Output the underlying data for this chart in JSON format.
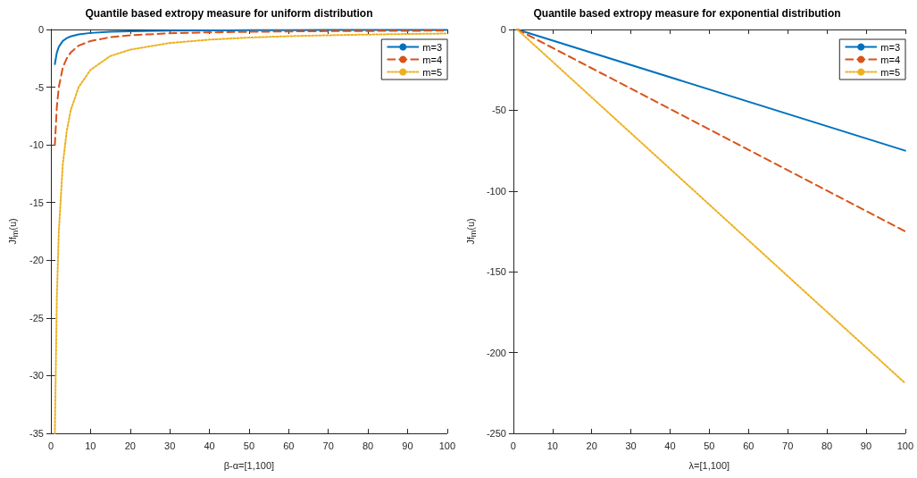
{
  "chart_data": [
    {
      "type": "line",
      "title": "Quantile based extropy measure for uniform distribution",
      "xlabel": "β-α=[1,100]",
      "ylabel": "Jf$_{m}$(u)",
      "x": [
        1,
        1.5,
        2,
        3,
        4,
        5,
        7,
        10,
        15,
        20,
        30,
        40,
        50,
        60,
        70,
        80,
        90,
        100
      ],
      "series": [
        {
          "name": "m=3",
          "color": "#0072bd",
          "line_style": "solid",
          "values": [
            -3,
            -2,
            -1.5,
            -1,
            -0.75,
            -0.6,
            -0.43,
            -0.3,
            -0.2,
            -0.15,
            -0.1,
            -0.08,
            -0.06,
            -0.05,
            -0.04,
            -0.04,
            -0.03,
            -0.03
          ]
        },
        {
          "name": "m=4",
          "color": "#d95319",
          "line_style": "dashed",
          "values": [
            -10,
            -6.7,
            -5,
            -3.3,
            -2.5,
            -2,
            -1.4,
            -1,
            -0.67,
            -0.5,
            -0.33,
            -0.25,
            -0.2,
            -0.17,
            -0.14,
            -0.13,
            -0.11,
            -0.1
          ]
        },
        {
          "name": "m=5",
          "color": "#edb120",
          "line_style": "dotted",
          "values": [
            -35,
            -23.3,
            -17.5,
            -11.7,
            -8.8,
            -7,
            -5,
            -3.5,
            -2.3,
            -1.75,
            -1.17,
            -0.88,
            -0.7,
            -0.58,
            -0.5,
            -0.44,
            -0.39,
            -0.35
          ]
        }
      ],
      "xlim": [
        0,
        100
      ],
      "xticks": [
        0,
        10,
        20,
        30,
        40,
        50,
        60,
        70,
        80,
        90,
        100
      ],
      "ylim": [
        -35,
        0
      ],
      "yticks": [
        -35,
        -30,
        -25,
        -20,
        -15,
        -10,
        -5,
        0
      ],
      "legend": "top right",
      "grid": false,
      "marker": "none"
    },
    {
      "type": "line",
      "title": "Quantile based extropy measure for exponential distribution",
      "xlabel": "λ=[1,100]",
      "ylabel": "Jf$_{m}$(u)",
      "x": [
        1,
        100
      ],
      "series": [
        {
          "name": "m=3",
          "color": "#0072bd",
          "line_style": "solid",
          "values": [
            0,
            -75
          ]
        },
        {
          "name": "m=4",
          "color": "#d95319",
          "line_style": "dashed",
          "values": [
            0,
            -125
          ]
        },
        {
          "name": "m=5",
          "color": "#edb120",
          "line_style": "dotted",
          "values": [
            0,
            -219
          ]
        }
      ],
      "xlim": [
        0,
        100
      ],
      "xticks": [
        0,
        10,
        20,
        30,
        40,
        50,
        60,
        70,
        80,
        90,
        100
      ],
      "ylim": [
        -250,
        0
      ],
      "yticks": [
        -250,
        -200,
        -150,
        -100,
        -50,
        0
      ],
      "legend": "top right",
      "grid": false,
      "marker": "none"
    }
  ]
}
